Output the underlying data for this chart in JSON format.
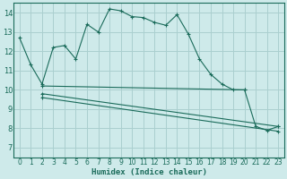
{
  "xlabel": "Humidex (Indice chaleur)",
  "background_color": "#ceeaea",
  "grid_color": "#aacfcf",
  "line_color": "#1a6b5a",
  "xlim": [
    -0.5,
    23.5
  ],
  "ylim": [
    6.5,
    14.5
  ],
  "xticks": [
    0,
    1,
    2,
    3,
    4,
    5,
    6,
    7,
    8,
    9,
    10,
    11,
    12,
    13,
    14,
    15,
    16,
    17,
    18,
    19,
    20,
    21,
    22,
    23
  ],
  "yticks": [
    7,
    8,
    9,
    10,
    11,
    12,
    13,
    14
  ],
  "series1_x": [
    0,
    1,
    2,
    3,
    4,
    5,
    6,
    7,
    8,
    9,
    10,
    11,
    12,
    13,
    14,
    15,
    16,
    17,
    18,
    19,
    20,
    21,
    22,
    23
  ],
  "series1_y": [
    12.7,
    11.3,
    10.3,
    12.2,
    12.3,
    11.6,
    13.4,
    13.0,
    14.2,
    14.1,
    13.8,
    13.75,
    13.5,
    13.35,
    13.9,
    12.9,
    11.6,
    10.8,
    10.3,
    10.0,
    10.0,
    8.1,
    7.9,
    8.1
  ],
  "series2_x": [
    2,
    20
  ],
  "series2_y": [
    10.2,
    10.0
  ],
  "series3_x": [
    2,
    23
  ],
  "series3_y": [
    9.8,
    8.1
  ],
  "series4_x": [
    2,
    23
  ],
  "series4_y": [
    9.6,
    7.85
  ]
}
